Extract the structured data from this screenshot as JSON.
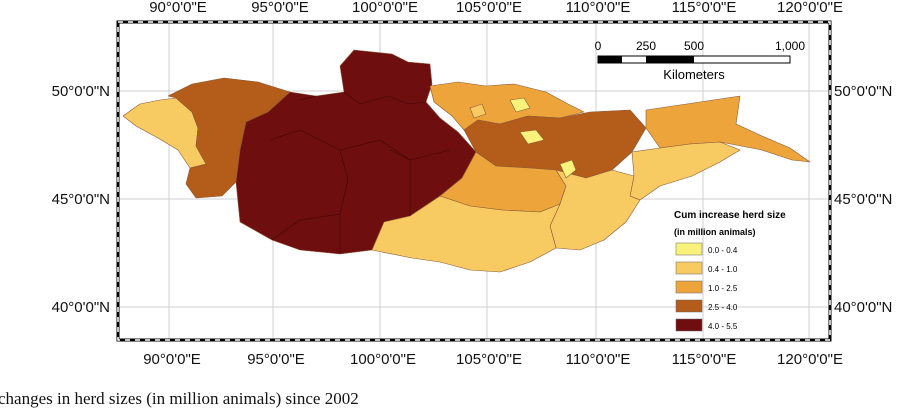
{
  "map": {
    "x_axis_labels": [
      "90°0'0\"E",
      "95°0'0\"E",
      "100°0'0\"E",
      "105°0'0\"E",
      "110°0'0\"E",
      "115°0'0\"E",
      "120°0'0\"E"
    ],
    "y_axis_labels": [
      "50°0'0\"N",
      "45°0'0\"N",
      "40°0'0\"N"
    ],
    "scale_bar": {
      "ticks": [
        "0",
        "250",
        "500",
        "1,000"
      ],
      "unit": "Kilometers"
    },
    "legend": {
      "title": "Cum increase herd size",
      "subtitle": "(in million animals)",
      "classes": [
        {
          "label": "0.0 - 0.4",
          "color": "#f8f27a"
        },
        {
          "label": "0.4 - 1.0",
          "color": "#f7cb62"
        },
        {
          "label": "1.0 - 2.5",
          "color": "#eda43a"
        },
        {
          "label": "2.5 - 4.0",
          "color": "#b45c1a"
        },
        {
          "label": "4.0 - 5.5",
          "color": "#6e0e0e"
        }
      ]
    }
  },
  "caption": "changes in herd sizes (in million animals) since 2002"
}
